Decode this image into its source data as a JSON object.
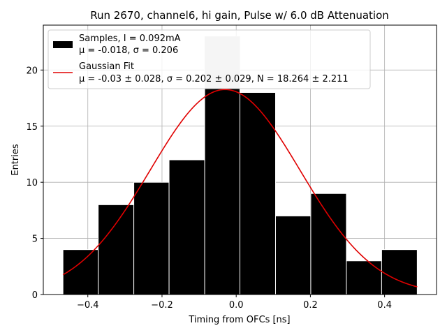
{
  "chart_data": {
    "type": "bar",
    "title": "Run 2670, channel6, hi gain, Pulse w/ 6.0 dB Attenuation",
    "xlabel": "Timing from OFCs [ns]",
    "ylabel": "Entries",
    "xlim": [
      -0.52,
      0.54
    ],
    "ylim": [
      0,
      24
    ],
    "x_ticks": [
      "−0.4",
      "−0.2",
      "0.0",
      "0.2",
      "0.4"
    ],
    "x_tick_values": [
      -0.4,
      -0.2,
      0.0,
      0.2,
      0.4
    ],
    "y_ticks": [
      "0",
      "5",
      "10",
      "15",
      "20"
    ],
    "y_tick_values": [
      0,
      5,
      10,
      15,
      20
    ],
    "grid": true,
    "legend_position": "top-left",
    "bins": [
      {
        "x0": -0.467,
        "x1": -0.372,
        "count": 4
      },
      {
        "x0": -0.372,
        "x1": -0.276,
        "count": 8
      },
      {
        "x0": -0.276,
        "x1": -0.181,
        "count": 10
      },
      {
        "x0": -0.181,
        "x1": -0.085,
        "count": 12
      },
      {
        "x0": -0.085,
        "x1": 0.01,
        "count": 23
      },
      {
        "x0": 0.01,
        "x1": 0.106,
        "count": 18
      },
      {
        "x0": 0.106,
        "x1": 0.201,
        "count": 7
      },
      {
        "x0": 0.201,
        "x1": 0.297,
        "count": 9
      },
      {
        "x0": 0.297,
        "x1": 0.392,
        "count": 3
      },
      {
        "x0": 0.392,
        "x1": 0.488,
        "count": 4
      }
    ],
    "fit": {
      "mu": -0.03,
      "sigma": 0.202,
      "N": 18.264,
      "x_range": [
        -0.467,
        0.488
      ]
    },
    "legend": [
      {
        "line1": "Samples, I = 0.092mA",
        "line2": "μ = -0.018, σ = 0.206"
      },
      {
        "line1": "Gaussian Fit",
        "line2": "μ = -0.03 ± 0.028, σ = 0.202 ± 0.029, N = 18.264 ± 2.211"
      }
    ],
    "colors": {
      "bars": "#000000",
      "bar_overlap": "#cccccc",
      "fit": "#e00000",
      "grid": "#b0b0b0"
    }
  }
}
